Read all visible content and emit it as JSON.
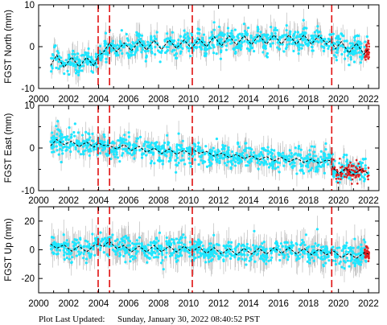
{
  "footer": {
    "prefix": "Plot Last Updated:",
    "timestamp": "Sunday, January 30, 2022 08:40:52 PST"
  },
  "colors": {
    "error_bars": "#b3b3b3",
    "points": "#1ee6ff",
    "recent_points": "#dd2020",
    "model_fit": "#000000",
    "event_lines": "#e01010"
  },
  "chart_data": [
    {
      "type": "scatter",
      "component": "north",
      "ylabel": "FGST North (mm)",
      "xlim": [
        2000,
        2022.7
      ],
      "ylim": [
        -10,
        10
      ],
      "xticks": [
        2000,
        2002,
        2004,
        2006,
        2008,
        2010,
        2012,
        2014,
        2016,
        2018,
        2020,
        2022
      ],
      "yticks": [
        -10,
        0,
        10
      ],
      "event_lines_x": [
        2003.97,
        2004.73,
        2010.25,
        2019.55
      ],
      "model": {
        "x": [
          2000.8,
          2001.2,
          2001.7,
          2002.2,
          2002.7,
          2003.2,
          2003.7,
          2004.0,
          2004.3,
          2004.7,
          2005.2,
          2005.7,
          2006.2,
          2006.7,
          2007.2,
          2007.7,
          2008.2,
          2008.7,
          2009.2,
          2009.7,
          2010.2,
          2010.7,
          2011.2,
          2011.7,
          2012.2,
          2012.7,
          2013.2,
          2013.7,
          2014.2,
          2014.7,
          2015.2,
          2015.7,
          2016.2,
          2016.7,
          2017.2,
          2017.7,
          2018.2,
          2018.7,
          2019.2,
          2019.5,
          2019.8,
          2020.2,
          2020.7,
          2021.2,
          2021.7,
          2022.0
        ],
        "y": [
          -4.5,
          -2.0,
          -5.0,
          -2.5,
          -4.8,
          -2.6,
          -4.6,
          -2.0,
          -1.5,
          0.8,
          -1.2,
          0.9,
          -1.0,
          1.3,
          -0.8,
          1.5,
          -0.7,
          1.6,
          -0.4,
          1.6,
          -0.4,
          1.8,
          0.0,
          2.4,
          0.2,
          2.6,
          0.4,
          2.6,
          0.5,
          2.8,
          0.6,
          2.8,
          0.6,
          2.8,
          0.6,
          2.8,
          0.6,
          2.7,
          0.6,
          1.5,
          -0.5,
          1.2,
          -1.5,
          0.8,
          -1.8,
          -0.5
        ]
      },
      "series": [
        {
          "name": "",
          "role": "daily-positions",
          "x_range": [
            2000.8,
            2022.0
          ],
          "mean_y_from_model": true,
          "spread_mm": 2.5,
          "error_bar_mm": 2.2
        },
        {
          "name": "",
          "role": "recent-positions",
          "x_range": [
            2021.75,
            2022.05
          ],
          "spread_mm": 1.5
        }
      ]
    },
    {
      "type": "scatter",
      "component": "east",
      "ylabel": "FGST East (mm)",
      "xlim": [
        2000,
        2022.7
      ],
      "ylim": [
        -10,
        10
      ],
      "xticks": [
        2000,
        2002,
        2004,
        2006,
        2008,
        2010,
        2012,
        2014,
        2016,
        2018,
        2020,
        2022
      ],
      "yticks": [
        -10,
        0,
        10
      ],
      "event_lines_x": [
        2003.97,
        2004.73,
        2010.25,
        2019.55
      ],
      "model": {
        "x": [
          2000.8,
          2001.2,
          2001.7,
          2002.2,
          2002.7,
          2003.2,
          2003.7,
          2004.0,
          2004.3,
          2004.7,
          2005.2,
          2005.7,
          2006.2,
          2006.7,
          2007.2,
          2007.7,
          2008.2,
          2008.7,
          2009.2,
          2009.7,
          2010.2,
          2010.3,
          2010.7,
          2011.2,
          2011.7,
          2012.2,
          2012.7,
          2013.2,
          2013.7,
          2014.2,
          2014.7,
          2015.2,
          2015.7,
          2016.2,
          2016.7,
          2017.2,
          2017.7,
          2018.2,
          2018.7,
          2019.2,
          2019.5,
          2019.6,
          2020.0,
          2020.5,
          2021.0,
          2021.5,
          2022.0
        ],
        "y": [
          0.5,
          2.0,
          0.8,
          1.6,
          0.3,
          1.4,
          0.2,
          1.2,
          0.6,
          0.6,
          -0.2,
          0.8,
          -0.6,
          0.4,
          -1.0,
          0.0,
          -1.3,
          -0.2,
          -1.5,
          -0.5,
          -1.7,
          -0.3,
          -1.2,
          -0.8,
          -1.9,
          -1.2,
          -2.2,
          -1.5,
          -2.5,
          -1.8,
          -2.8,
          -2.0,
          -3.0,
          -2.2,
          -3.2,
          -2.4,
          -3.4,
          -2.6,
          -3.6,
          -2.8,
          -3.0,
          -4.5,
          -6.0,
          -4.8,
          -6.2,
          -5.0,
          -6.0
        ]
      },
      "series": [
        {
          "name": "",
          "role": "daily-positions",
          "x_range": [
            2000.8,
            2022.0
          ],
          "mean_y_from_model": true,
          "spread_mm": 2.5,
          "error_bar_mm": 2.2
        },
        {
          "name": "",
          "role": "recent-positions",
          "x_range": [
            2019.6,
            2022.05
          ],
          "spread_mm": 2.0
        }
      ]
    },
    {
      "type": "scatter",
      "component": "up",
      "ylabel": "FGST Up (mm)",
      "xlim": [
        2000,
        2022.7
      ],
      "ylim": [
        -30,
        30
      ],
      "xticks": [
        2000,
        2002,
        2004,
        2006,
        2008,
        2010,
        2012,
        2014,
        2016,
        2018,
        2020,
        2022
      ],
      "yticks": [
        -20,
        0,
        20
      ],
      "event_lines_x": [
        2003.97,
        2004.73,
        2010.25,
        2019.55
      ],
      "model": {
        "x": [
          2000.8,
          2001.2,
          2001.7,
          2002.2,
          2002.7,
          2003.2,
          2003.7,
          2004.0,
          2004.3,
          2004.7,
          2005.2,
          2005.7,
          2006.2,
          2006.7,
          2007.2,
          2007.7,
          2008.2,
          2008.7,
          2009.2,
          2009.7,
          2010.2,
          2010.7,
          2011.2,
          2011.7,
          2012.2,
          2012.7,
          2013.2,
          2013.7,
          2014.2,
          2014.7,
          2015.2,
          2015.7,
          2016.2,
          2016.7,
          2017.2,
          2017.7,
          2018.2,
          2018.7,
          2019.2,
          2019.7,
          2020.2,
          2020.7,
          2021.2,
          2021.7,
          2022.0
        ],
        "y": [
          4.0,
          1.0,
          3.5,
          -1.0,
          2.5,
          -1.5,
          3.0,
          4.0,
          2.0,
          6.0,
          1.0,
          3.0,
          -1.5,
          2.5,
          -1.5,
          3.0,
          -1.5,
          2.5,
          -1.5,
          2.5,
          -1.5,
          2.0,
          -2.5,
          1.5,
          -3.0,
          1.0,
          -3.5,
          1.0,
          -3.0,
          1.0,
          -3.0,
          1.5,
          -2.5,
          1.5,
          -3.0,
          1.0,
          -3.5,
          0.5,
          -3.5,
          -1.0,
          -5.5,
          -2.5,
          -6.0,
          -2.0,
          -3.0
        ]
      },
      "series": [
        {
          "name": "",
          "role": "daily-positions",
          "x_range": [
            2000.8,
            2022.0
          ],
          "mean_y_from_model": true,
          "spread_mm": 7.0,
          "error_bar_mm": 8.0
        },
        {
          "name": "",
          "role": "recent-positions",
          "x_range": [
            2021.75,
            2022.05
          ],
          "spread_mm": 4.0
        }
      ]
    }
  ]
}
